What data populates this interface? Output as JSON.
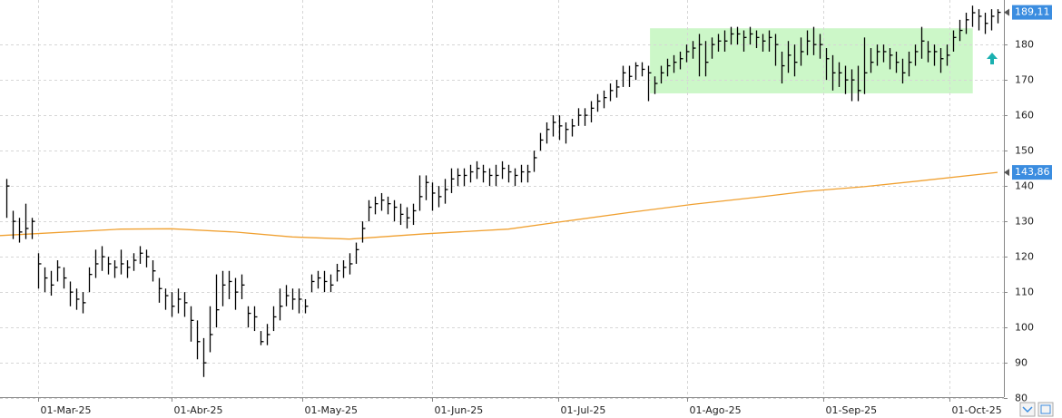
{
  "chart_data": {
    "type": "hlc",
    "color": "#000000",
    "high": [
      142,
      133,
      131,
      135,
      131,
      121,
      117,
      116,
      119,
      117,
      113,
      111,
      110,
      117,
      122,
      123,
      120,
      119,
      122,
      119,
      121,
      123,
      122,
      119,
      114,
      111,
      110,
      111,
      110,
      106,
      102,
      97,
      106,
      115,
      116,
      116,
      114,
      115,
      106,
      106,
      99,
      101,
      106,
      111,
      112,
      111,
      111,
      108,
      115,
      116,
      116,
      115,
      118,
      119,
      121,
      124,
      130,
      136,
      137,
      138,
      137,
      136,
      135,
      134,
      135,
      143,
      143,
      141,
      140,
      142,
      145,
      145,
      145,
      146,
      147,
      146,
      145,
      146,
      147,
      146,
      145,
      146,
      146,
      150,
      155,
      158,
      160,
      160,
      158,
      159,
      162,
      162,
      164,
      166,
      167,
      169,
      170,
      174,
      174,
      175,
      175,
      174,
      171,
      174,
      176,
      177,
      178,
      180,
      181,
      183,
      181,
      182,
      183,
      184,
      185,
      185,
      184,
      185,
      184,
      183,
      184,
      183,
      178,
      181,
      180,
      182,
      184,
      185,
      183,
      179,
      177,
      175,
      174,
      173,
      174,
      182,
      179,
      180,
      180,
      179,
      178,
      176,
      178,
      180,
      185,
      181,
      180,
      179,
      180,
      184,
      187,
      189,
      191,
      190,
      189,
      190,
      190
    ],
    "low": [
      131,
      125,
      124,
      125,
      125,
      111,
      110,
      109,
      113,
      111,
      106,
      105,
      104,
      110,
      114,
      116,
      115,
      114,
      115,
      114,
      116,
      118,
      117,
      113,
      107,
      105,
      103,
      104,
      103,
      96,
      91,
      86,
      93,
      100,
      106,
      108,
      105,
      108,
      100,
      99,
      95,
      95,
      99,
      102,
      106,
      105,
      104,
      104,
      110,
      111,
      110,
      110,
      113,
      114,
      115,
      118,
      124,
      130,
      132,
      133,
      132,
      130,
      129,
      128,
      129,
      133,
      136,
      133,
      134,
      135,
      138,
      140,
      140,
      141,
      142,
      141,
      140,
      140,
      142,
      141,
      140,
      141,
      141,
      144,
      150,
      152,
      154,
      153,
      152,
      154,
      157,
      157,
      158,
      161,
      162,
      164,
      165,
      168,
      168,
      170,
      171,
      164,
      166,
      169,
      171,
      172,
      173,
      175,
      176,
      171,
      171,
      176,
      178,
      178,
      180,
      180,
      178,
      180,
      179,
      178,
      178,
      174,
      169,
      172,
      171,
      174,
      177,
      177,
      176,
      170,
      167,
      168,
      166,
      164,
      164,
      166,
      172,
      174,
      175,
      173,
      172,
      169,
      171,
      174,
      176,
      175,
      174,
      172,
      174,
      178,
      181,
      183,
      185,
      184,
      183,
      184,
      186
    ],
    "close": [
      140,
      130,
      127,
      128,
      130,
      118,
      114,
      112,
      117,
      114,
      110,
      108,
      107,
      115,
      118,
      120,
      118,
      117,
      118,
      117,
      119,
      121,
      120,
      116,
      111,
      109,
      106,
      108,
      107,
      102,
      96,
      90,
      98,
      105,
      112,
      113,
      110,
      112,
      104,
      103,
      96,
      98,
      103,
      106,
      109,
      108,
      108,
      106,
      113,
      114,
      113,
      112,
      116,
      117,
      118,
      122,
      128,
      134,
      135,
      136,
      135,
      134,
      132,
      131,
      133,
      137,
      141,
      138,
      137,
      139,
      142,
      143,
      143,
      144,
      145,
      144,
      143,
      143,
      145,
      144,
      143,
      144,
      144,
      148,
      153,
      156,
      158,
      157,
      156,
      157,
      160,
      160,
      162,
      164,
      165,
      167,
      168,
      172,
      171,
      174,
      173,
      172,
      169,
      172,
      174,
      175,
      176,
      178,
      179,
      180,
      175,
      180,
      181,
      181,
      183,
      183,
      182,
      183,
      182,
      181,
      182,
      180,
      174,
      177,
      175,
      178,
      181,
      180,
      180,
      176,
      172,
      172,
      170,
      170,
      167,
      172,
      175,
      178,
      178,
      177,
      175,
      172,
      175,
      178,
      181,
      178,
      178,
      176,
      177,
      182,
      184,
      187,
      189,
      188,
      186,
      188,
      189.11
    ],
    "last_price": {
      "value": 189.11,
      "label": "189,11",
      "color": "#3b8de0"
    },
    "moving_average": {
      "color": "#f0a030",
      "x": [
        -1,
        18,
        26,
        36,
        45,
        54,
        66,
        79,
        87,
        98,
        108,
        119,
        126,
        135,
        144,
        156
      ],
      "values": [
        126,
        127.8,
        127.9,
        127,
        125.6,
        125,
        126.5,
        127.8,
        129.8,
        132.5,
        134.8,
        137,
        138.5,
        139.8,
        141.5,
        143.86
      ],
      "last_label": {
        "value": 143.86,
        "label": "143,86"
      }
    },
    "highlight": {
      "xlim": [
        101.3,
        152.1
      ],
      "ylim": [
        166.2,
        184.6
      ],
      "color": "#ccf7c8"
    },
    "xlim": [
      -1,
      157
    ],
    "xticks": [
      {
        "value": 5,
        "label": "01-Mar-25"
      },
      {
        "value": 26,
        "label": "01-Abr-25"
      },
      {
        "value": 46.5,
        "label": "01-May-25"
      },
      {
        "value": 67,
        "label": "01-Jun-25"
      },
      {
        "value": 86.8,
        "label": "01-Jul-25"
      },
      {
        "value": 107.2,
        "label": "01-Ago-25"
      },
      {
        "value": 128.5,
        "label": "01-Sep-25"
      },
      {
        "value": 148.4,
        "label": "01-Oct-25"
      }
    ],
    "ylim": [
      80.3,
      192.6
    ],
    "yticks": [
      80,
      90,
      100,
      110,
      120,
      130,
      140,
      150,
      160,
      170,
      180
    ],
    "grid": true
  }
}
